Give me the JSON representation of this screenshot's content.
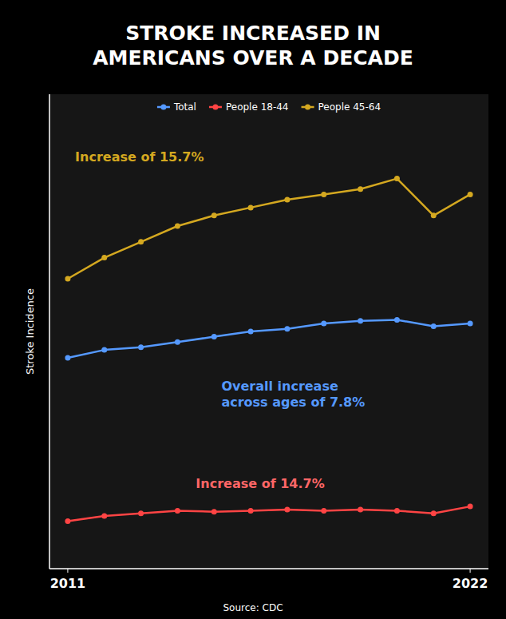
{
  "chart_data": {
    "type": "line",
    "title": "STROKE INCREASED IN\nAMERICANS OVER A DECADE",
    "y_label": "Stroke Incidence",
    "source": "Source: CDC",
    "x": [
      2011,
      2012,
      2013,
      2014,
      2015,
      2016,
      2017,
      2018,
      2019,
      2020,
      2021,
      2022
    ],
    "series": [
      {
        "name": "Total",
        "color": "#5599ff",
        "marker": "circle",
        "values": [
          40,
          41.5,
          42,
          43,
          44,
          45,
          45.5,
          46.5,
          47,
          47.2,
          46,
          46.5
        ]
      },
      {
        "name": "People 18-44",
        "color": "#ff4444",
        "marker": "circle",
        "values": [
          9,
          10.0,
          10.5,
          11.0,
          10.8,
          11.0,
          11.2,
          11.0,
          11.2,
          11.0,
          10.5,
          11.8
        ]
      },
      {
        "name": "People 45-64",
        "color": "#d4a820",
        "marker": "circle",
        "values": [
          55,
          59,
          62,
          65,
          67,
          68.5,
          70,
          71,
          72,
          74,
          67,
          71
        ]
      }
    ],
    "annotations": [
      {
        "text": "Overall increase\nacross ages of 7.8%",
        "x": 2015.2,
        "y": 33,
        "color": "#5599ff"
      },
      {
        "text": "Increase of 14.7%",
        "x": 2014.5,
        "y": 16,
        "color": "#ff6666"
      },
      {
        "text": "Increase of 15.7%",
        "x": 2011.2,
        "y": 78,
        "color": "#d4a820"
      }
    ],
    "xlim": [
      2010.5,
      2022.5
    ],
    "xticks": [
      2011,
      2022
    ],
    "ylim": [
      0,
      90
    ],
    "tick_labels": "x",
    "grid": false,
    "legend": "top"
  }
}
